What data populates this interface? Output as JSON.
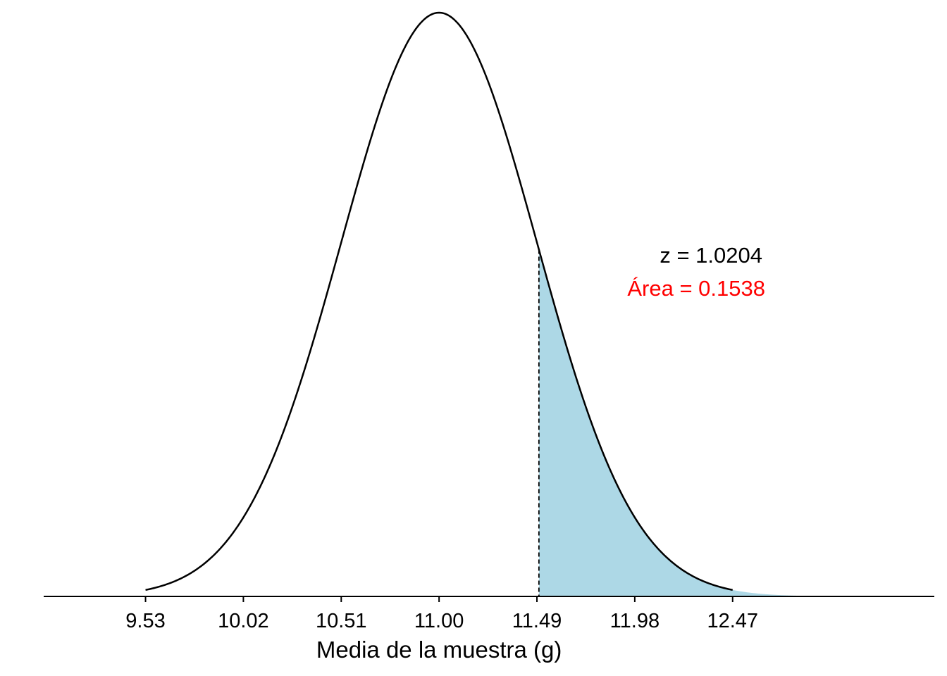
{
  "chart_data": {
    "type": "area",
    "distribution": "normal",
    "mean": 11.0,
    "sd": 0.49,
    "xlim": [
      9.02,
      13.48
    ],
    "xlabel": "Media de la muestra (g)",
    "ylabel": "",
    "x_ticks": [
      9.53,
      10.02,
      10.51,
      11.0,
      11.49,
      11.98,
      12.47
    ],
    "x_tick_labels": [
      "9.53",
      "10.02",
      "10.51",
      "11.00",
      "11.49",
      "11.98",
      "12.47"
    ],
    "shaded_from": 11.5,
    "shaded_to": 12.96,
    "shade_color": "#ADD8E6",
    "curve_color": "#000000",
    "y_axis": false,
    "grid": false,
    "annotations": {
      "z_text": "z = 1.0204",
      "area_text": "Área = 0.1538",
      "area_color": "#FF0000"
    }
  }
}
